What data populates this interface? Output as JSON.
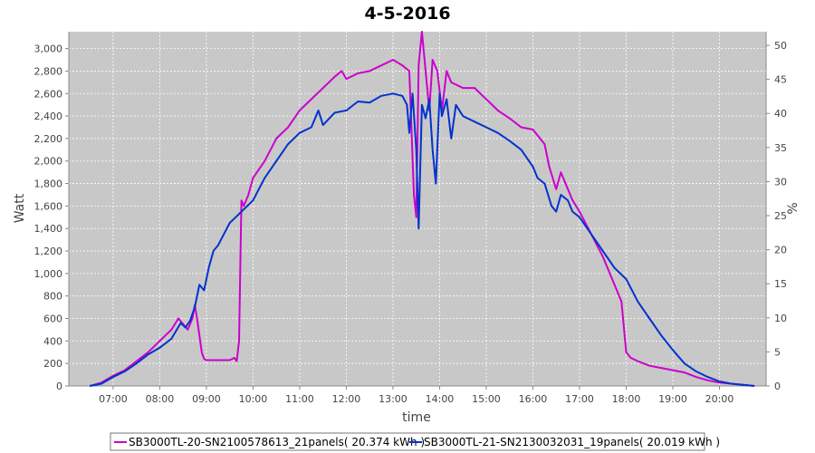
{
  "chart_data": {
    "type": "line",
    "title": "4-5-2016",
    "xlabel": "time",
    "ylabel": "Watt",
    "y2label": "%",
    "x_ticks": [
      "07:00",
      "08:00",
      "09:00",
      "10:00",
      "11:00",
      "12:00",
      "13:00",
      "14:00",
      "15:00",
      "16:00",
      "17:00",
      "18:00",
      "19:00",
      "20:00"
    ],
    "y_ticks": [
      0,
      200,
      400,
      600,
      800,
      1000,
      1200,
      1400,
      1600,
      1800,
      2000,
      2200,
      2400,
      2600,
      2800,
      3000
    ],
    "y_tick_labels": [
      "0",
      "200",
      "400",
      "600",
      "800",
      "1,000",
      "1,200",
      "1,400",
      "1,600",
      "1,800",
      "2,000",
      "2,200",
      "2,400",
      "2,600",
      "2,800",
      "3,000"
    ],
    "y2_ticks": [
      0,
      5,
      10,
      15,
      20,
      25,
      30,
      35,
      40,
      45,
      50
    ],
    "ylim": [
      0,
      3150
    ],
    "y2lim": [
      0,
      52
    ],
    "xlim_hours": [
      6.05,
      21.0
    ],
    "grid": true,
    "legend_position": "bottom",
    "background": "#c8c8c8",
    "series": [
      {
        "name": "SB3000TL-20-SN2100578613_21panels( 20.374 kWh )",
        "color": "#cc00cc",
        "points": [
          [
            6.5,
            0
          ],
          [
            6.75,
            30
          ],
          [
            7.0,
            90
          ],
          [
            7.25,
            140
          ],
          [
            7.5,
            220
          ],
          [
            7.75,
            300
          ],
          [
            8.0,
            400
          ],
          [
            8.25,
            500
          ],
          [
            8.4,
            600
          ],
          [
            8.5,
            550
          ],
          [
            8.6,
            500
          ],
          [
            8.7,
            600
          ],
          [
            8.75,
            720
          ],
          [
            8.8,
            600
          ],
          [
            8.9,
            300
          ],
          [
            8.95,
            240
          ],
          [
            9.0,
            230
          ],
          [
            9.25,
            230
          ],
          [
            9.5,
            230
          ],
          [
            9.6,
            250
          ],
          [
            9.65,
            220
          ],
          [
            9.7,
            400
          ],
          [
            9.75,
            1650
          ],
          [
            9.8,
            1600
          ],
          [
            9.9,
            1700
          ],
          [
            10.0,
            1850
          ],
          [
            10.25,
            2000
          ],
          [
            10.5,
            2200
          ],
          [
            10.75,
            2300
          ],
          [
            11.0,
            2450
          ],
          [
            11.25,
            2550
          ],
          [
            11.5,
            2650
          ],
          [
            11.75,
            2750
          ],
          [
            11.9,
            2800
          ],
          [
            12.0,
            2730
          ],
          [
            12.25,
            2780
          ],
          [
            12.5,
            2800
          ],
          [
            12.75,
            2850
          ],
          [
            13.0,
            2900
          ],
          [
            13.2,
            2850
          ],
          [
            13.35,
            2800
          ],
          [
            13.45,
            1700
          ],
          [
            13.5,
            1500
          ],
          [
            13.55,
            2850
          ],
          [
            13.62,
            3150
          ],
          [
            13.7,
            2800
          ],
          [
            13.78,
            2450
          ],
          [
            13.85,
            2900
          ],
          [
            13.95,
            2800
          ],
          [
            14.05,
            2450
          ],
          [
            14.15,
            2800
          ],
          [
            14.25,
            2700
          ],
          [
            14.5,
            2650
          ],
          [
            14.75,
            2650
          ],
          [
            15.0,
            2550
          ],
          [
            15.25,
            2450
          ],
          [
            15.5,
            2380
          ],
          [
            15.75,
            2300
          ],
          [
            16.0,
            2280
          ],
          [
            16.25,
            2150
          ],
          [
            16.35,
            1950
          ],
          [
            16.5,
            1750
          ],
          [
            16.6,
            1900
          ],
          [
            16.75,
            1750
          ],
          [
            16.85,
            1650
          ],
          [
            17.0,
            1550
          ],
          [
            17.25,
            1350
          ],
          [
            17.5,
            1150
          ],
          [
            17.75,
            900
          ],
          [
            17.9,
            750
          ],
          [
            18.0,
            300
          ],
          [
            18.1,
            250
          ],
          [
            18.25,
            220
          ],
          [
            18.5,
            180
          ],
          [
            18.75,
            160
          ],
          [
            19.0,
            140
          ],
          [
            19.25,
            120
          ],
          [
            19.5,
            80
          ],
          [
            19.75,
            50
          ],
          [
            20.0,
            30
          ],
          [
            20.25,
            20
          ],
          [
            20.5,
            10
          ],
          [
            20.75,
            0
          ]
        ]
      },
      {
        "name": "SB3000TL-21-SN2130032031_19panels( 20.019 kWh )",
        "color": "#0033cc",
        "points": [
          [
            6.5,
            0
          ],
          [
            6.75,
            20
          ],
          [
            7.0,
            80
          ],
          [
            7.25,
            130
          ],
          [
            7.5,
            200
          ],
          [
            7.75,
            280
          ],
          [
            8.0,
            340
          ],
          [
            8.25,
            420
          ],
          [
            8.45,
            560
          ],
          [
            8.55,
            520
          ],
          [
            8.65,
            580
          ],
          [
            8.75,
            700
          ],
          [
            8.85,
            900
          ],
          [
            8.95,
            850
          ],
          [
            9.05,
            1050
          ],
          [
            9.15,
            1200
          ],
          [
            9.25,
            1250
          ],
          [
            9.5,
            1450
          ],
          [
            9.75,
            1550
          ],
          [
            10.0,
            1650
          ],
          [
            10.25,
            1850
          ],
          [
            10.5,
            2000
          ],
          [
            10.75,
            2150
          ],
          [
            11.0,
            2250
          ],
          [
            11.25,
            2300
          ],
          [
            11.4,
            2450
          ],
          [
            11.5,
            2320
          ],
          [
            11.75,
            2430
          ],
          [
            12.0,
            2450
          ],
          [
            12.25,
            2530
          ],
          [
            12.5,
            2520
          ],
          [
            12.75,
            2580
          ],
          [
            13.0,
            2600
          ],
          [
            13.2,
            2580
          ],
          [
            13.3,
            2500
          ],
          [
            13.35,
            2250
          ],
          [
            13.42,
            2600
          ],
          [
            13.5,
            2100
          ],
          [
            13.55,
            1400
          ],
          [
            13.62,
            2500
          ],
          [
            13.7,
            2380
          ],
          [
            13.78,
            2550
          ],
          [
            13.85,
            2100
          ],
          [
            13.92,
            1800
          ],
          [
            14.0,
            2600
          ],
          [
            14.05,
            2400
          ],
          [
            14.15,
            2550
          ],
          [
            14.25,
            2200
          ],
          [
            14.35,
            2500
          ],
          [
            14.5,
            2400
          ],
          [
            14.75,
            2350
          ],
          [
            15.0,
            2300
          ],
          [
            15.25,
            2250
          ],
          [
            15.5,
            2180
          ],
          [
            15.75,
            2100
          ],
          [
            16.0,
            1950
          ],
          [
            16.1,
            1850
          ],
          [
            16.25,
            1800
          ],
          [
            16.4,
            1600
          ],
          [
            16.5,
            1550
          ],
          [
            16.6,
            1700
          ],
          [
            16.75,
            1650
          ],
          [
            16.85,
            1550
          ],
          [
            17.0,
            1500
          ],
          [
            17.25,
            1350
          ],
          [
            17.5,
            1200
          ],
          [
            17.75,
            1050
          ],
          [
            18.0,
            950
          ],
          [
            18.25,
            750
          ],
          [
            18.5,
            600
          ],
          [
            18.75,
            450
          ],
          [
            19.0,
            320
          ],
          [
            19.25,
            200
          ],
          [
            19.5,
            130
          ],
          [
            19.75,
            80
          ],
          [
            20.0,
            40
          ],
          [
            20.25,
            20
          ],
          [
            20.5,
            10
          ],
          [
            20.75,
            0
          ]
        ]
      }
    ]
  }
}
